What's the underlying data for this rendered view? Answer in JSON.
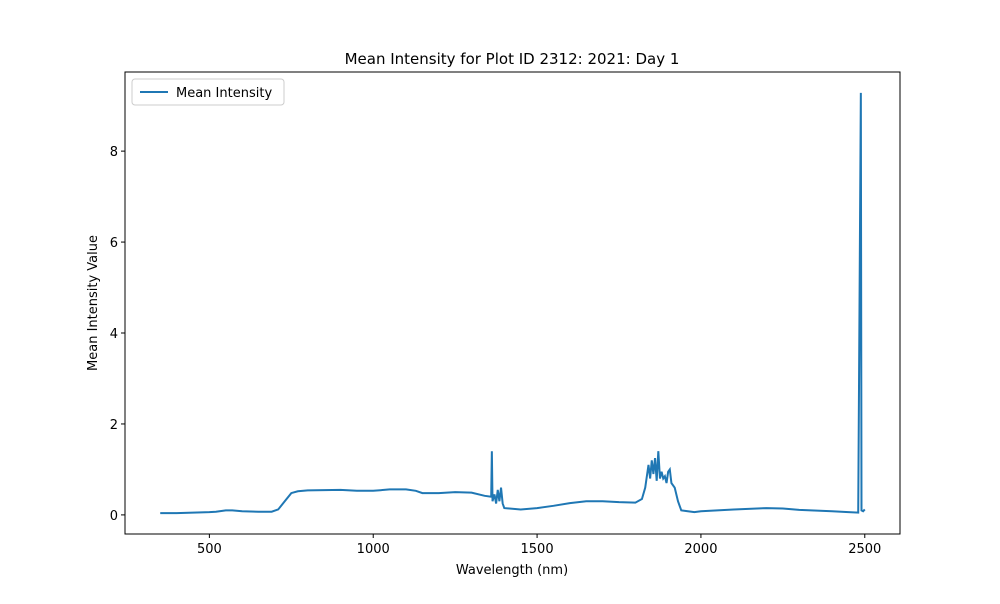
{
  "chart_data": {
    "type": "line",
    "title": "Mean Intensity for Plot ID 2312: 2021: Day 1",
    "xlabel": "Wavelength (nm)",
    "ylabel": "Mean Intensity Value",
    "x": [
      350,
      400,
      450,
      500,
      520,
      550,
      570,
      600,
      650,
      690,
      710,
      730,
      750,
      770,
      800,
      900,
      950,
      1000,
      1050,
      1100,
      1130,
      1150,
      1200,
      1250,
      1300,
      1340,
      1360,
      1362,
      1364,
      1370,
      1375,
      1380,
      1385,
      1390,
      1395,
      1400,
      1450,
      1500,
      1550,
      1600,
      1650,
      1700,
      1750,
      1800,
      1820,
      1830,
      1840,
      1845,
      1850,
      1855,
      1860,
      1865,
      1870,
      1875,
      1880,
      1885,
      1890,
      1895,
      1900,
      1905,
      1910,
      1920,
      1930,
      1940,
      1960,
      1980,
      2000,
      2050,
      2100,
      2200,
      2250,
      2300,
      2400,
      2450,
      2480,
      2488,
      2490,
      2495,
      2500
    ],
    "series": [
      {
        "name": "Mean Intensity",
        "color": "#1f77b4",
        "values": [
          0.04,
          0.04,
          0.05,
          0.06,
          0.07,
          0.1,
          0.1,
          0.08,
          0.07,
          0.07,
          0.12,
          0.3,
          0.48,
          0.52,
          0.54,
          0.55,
          0.53,
          0.53,
          0.56,
          0.56,
          0.53,
          0.48,
          0.48,
          0.5,
          0.49,
          0.42,
          0.4,
          1.4,
          0.3,
          0.45,
          0.25,
          0.55,
          0.3,
          0.6,
          0.25,
          0.15,
          0.12,
          0.15,
          0.2,
          0.26,
          0.3,
          0.3,
          0.28,
          0.27,
          0.35,
          0.6,
          1.1,
          0.8,
          1.2,
          0.9,
          1.25,
          0.75,
          1.4,
          0.8,
          0.95,
          0.8,
          0.85,
          0.7,
          0.95,
          1.0,
          0.7,
          0.6,
          0.3,
          0.1,
          0.08,
          0.06,
          0.08,
          0.1,
          0.12,
          0.15,
          0.14,
          0.11,
          0.08,
          0.06,
          0.05,
          9.28,
          0.1,
          0.08,
          0.12
        ]
      }
    ],
    "xlim": [
      242.5,
      2607.5
    ],
    "xticks": [
      500,
      1000,
      1500,
      2000,
      2500
    ],
    "ylim": [
      -0.42,
      9.74
    ],
    "yticks": [
      0,
      2,
      4,
      6,
      8
    ],
    "legend": "upper left"
  }
}
